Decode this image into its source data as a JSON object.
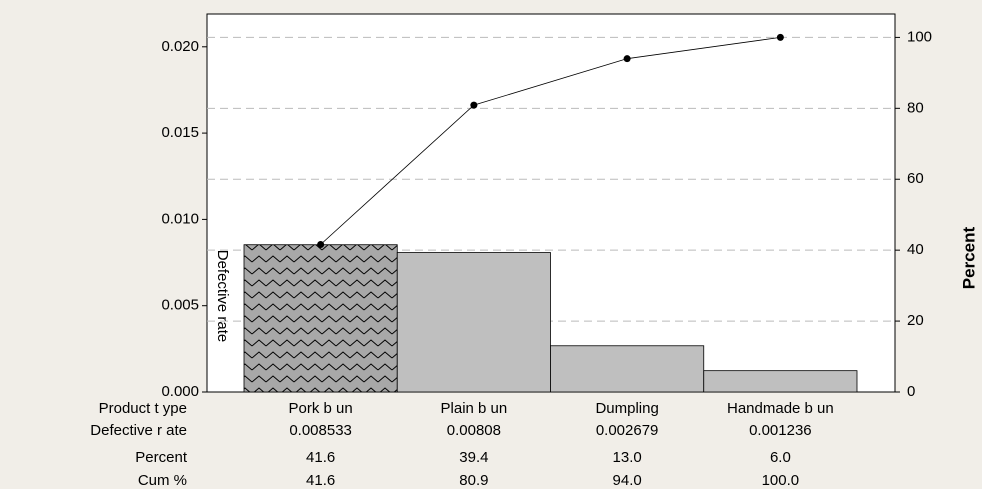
{
  "chart_data": {
    "type": "pareto",
    "categories": [
      "Pork b un",
      "Plain b un",
      "Dumpling",
      "Handmade b un"
    ],
    "category_label": "Product t ype",
    "ylabel": "Defective rate",
    "y2label": "Percent",
    "series": [
      {
        "name": "Defective r ate",
        "color": "#bfbfbf",
        "values": [
          0.008533,
          0.00808,
          0.002679,
          0.001236
        ]
      },
      {
        "name": "Cum %",
        "axis": "y2",
        "color": "#000000",
        "values": [
          41.6,
          80.9,
          94.0,
          100.0
        ],
        "value_labels": [
          "41.6",
          "80.9",
          "94.0",
          "100.0"
        ]
      }
    ],
    "percent": {
      "name": "Percent",
      "values": [
        41.6,
        39.4,
        13.0,
        6.0
      ],
      "value_labels": [
        "41.6",
        "39.4",
        "13.0",
        "6.0"
      ]
    },
    "highlight": 0,
    "ylim": [
      0,
      0.0219
    ],
    "yticks": [
      {
        "value": 0,
        "label": "0.000"
      },
      {
        "value": 0.005,
        "label": "0.005"
      },
      {
        "value": 0.01,
        "label": "0.010"
      },
      {
        "value": 0.015,
        "label": "0.015"
      },
      {
        "value": 0.02,
        "label": "0.020"
      }
    ],
    "y2lim": [
      0,
      106.6
    ],
    "y2ticks": [
      0,
      20,
      40,
      60,
      80,
      100
    ],
    "grid": true
  }
}
